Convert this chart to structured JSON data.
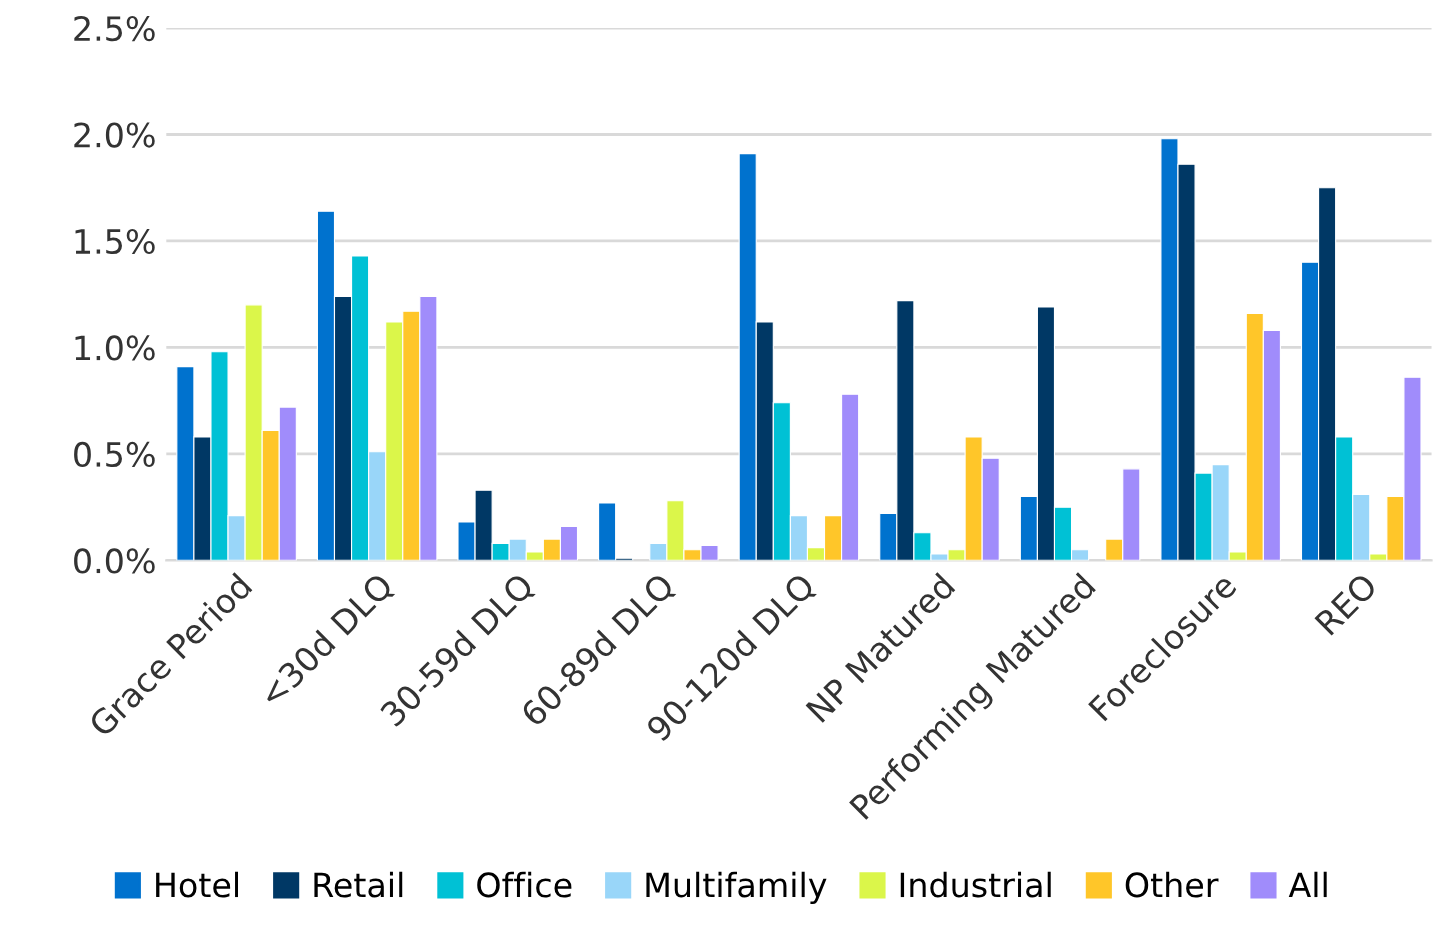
{
  "chart_data": {
    "type": "bar",
    "categories": [
      "Grace Period",
      "<30d DLQ",
      "30-59d DLQ",
      "60-89d DLQ",
      "90-120d DLQ",
      "NP Matured",
      "Performing Matured",
      "Foreclosure",
      "REO"
    ],
    "series": [
      {
        "name": "Hotel",
        "color": "#0072ce",
        "values": [
          0.91,
          1.64,
          0.18,
          0.27,
          1.91,
          0.22,
          0.3,
          1.98,
          1.4
        ]
      },
      {
        "name": "Retail",
        "color": "#003865",
        "values": [
          0.58,
          1.24,
          0.33,
          0.01,
          1.12,
          1.22,
          1.19,
          1.86,
          1.75
        ]
      },
      {
        "name": "Office",
        "color": "#00c1d5",
        "values": [
          0.98,
          1.43,
          0.08,
          null,
          0.74,
          0.13,
          0.25,
          0.41,
          0.58
        ]
      },
      {
        "name": "Multifamily",
        "color": "#99d6f9",
        "values": [
          0.21,
          0.51,
          0.1,
          0.08,
          0.21,
          0.03,
          0.05,
          0.45,
          0.31
        ]
      },
      {
        "name": "Industrial",
        "color": "#dbf64a",
        "values": [
          1.2,
          1.12,
          0.04,
          0.28,
          0.06,
          0.05,
          null,
          0.04,
          0.03
        ]
      },
      {
        "name": "Other",
        "color": "#ffc629",
        "values": [
          0.61,
          1.17,
          0.1,
          0.05,
          0.21,
          0.58,
          0.1,
          1.16,
          0.3
        ]
      },
      {
        "name": "All",
        "color": "#a08cfb",
        "values": [
          0.72,
          1.24,
          0.16,
          0.07,
          0.78,
          0.48,
          0.43,
          1.08,
          0.86
        ]
      }
    ],
    "ylim": [
      0,
      2.5
    ],
    "yticks": [
      {
        "value": 0,
        "label": "0.0%"
      },
      {
        "value": 0.5,
        "label": "0.5%"
      },
      {
        "value": 1.0,
        "label": "1.0%"
      },
      {
        "value": 1.5,
        "label": "1.5%"
      },
      {
        "value": 2.0,
        "label": "2.0%"
      },
      {
        "value": 2.5,
        "label": "2.5%"
      }
    ],
    "grid": "y",
    "legend": "bottom"
  }
}
